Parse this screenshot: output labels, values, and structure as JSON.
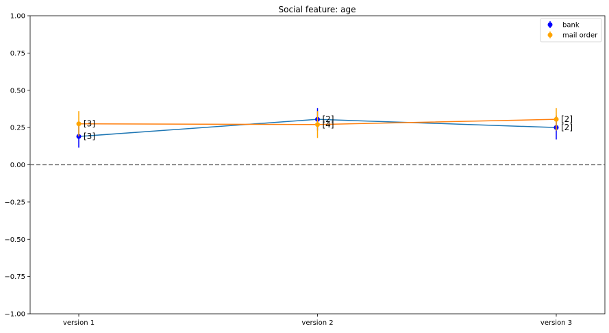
{
  "chart_data": {
    "type": "line",
    "title": "Social feature: age",
    "xlabel": "",
    "ylabel": "",
    "categories": [
      "version 1",
      "version 2",
      "version 3"
    ],
    "ylim": [
      -1.0,
      1.0
    ],
    "yticks": [
      "1.00",
      "0.75",
      "0.50",
      "0.25",
      "0.00",
      "−0.25",
      "−0.50",
      "−0.75",
      "−1.00"
    ],
    "ytick_values": [
      1.0,
      0.75,
      0.5,
      0.25,
      0.0,
      -0.25,
      -0.5,
      -0.75,
      -1.0
    ],
    "reference_line": {
      "y": 0.0,
      "style": "dashed",
      "color": "#555555"
    },
    "grid": false,
    "legend_position": "top-right",
    "series": [
      {
        "name": "bank",
        "line_color": "#1f77b4",
        "marker_color": "#0000ff",
        "values": [
          0.19,
          0.305,
          0.25
        ],
        "error": [
          0.075,
          0.075,
          0.08
        ],
        "annotations": [
          "[3]",
          "[2]",
          "[2]"
        ]
      },
      {
        "name": "mail order",
        "line_color": "#ff7f0e",
        "marker_color": "#ffa500",
        "values": [
          0.275,
          0.27,
          0.305
        ],
        "error": [
          0.085,
          0.09,
          0.075
        ],
        "annotations": [
          "[3]",
          "[4]",
          "[2]"
        ]
      }
    ]
  }
}
